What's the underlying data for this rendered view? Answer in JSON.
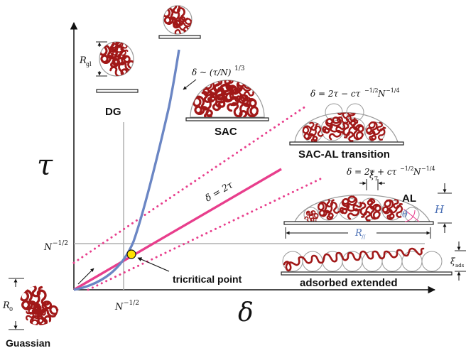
{
  "axes": {
    "y_label": "τ",
    "x_label": "δ",
    "y_tick": "N",
    "y_tick_exp": "−1/2",
    "x_tick": "N",
    "x_tick_exp": "−1/2"
  },
  "regimes": {
    "dg": "DG",
    "sac": "SAC",
    "sac_al": "SAC-AL transition",
    "al": "AL",
    "adsorbed": "adsorbed extended",
    "gaussian": "Guassian"
  },
  "formulas": {
    "scaling_lhs": "δ ~ (τ/N)",
    "scaling_exp": "1/3",
    "upper_boundary_lhs": "δ = 2τ − cτ",
    "upper_boundary_exp1": "−1/2",
    "upper_boundary_mid": "N",
    "upper_boundary_exp2": "−1/4",
    "middle_line": "δ = 2τ",
    "lower_boundary_lhs": "δ = 2τ + cτ",
    "lower_boundary_exp1": "−1/2",
    "lower_boundary_mid": "N",
    "lower_boundary_exp2": "−1/4"
  },
  "annotations": {
    "tricritical": "tricritical point",
    "r_gl": "R",
    "r_gl_sub": "gl",
    "r0": "R",
    "r0_sub": "0",
    "xi_t": "ξ",
    "xi_t_sub": "T",
    "h": "H",
    "theta": "θ",
    "r_par": "R",
    "r_par_sub": "//",
    "xi_ads": "ξ",
    "xi_ads_sub": "ads"
  },
  "colors": {
    "blue_curve": "#6b86c4",
    "magenta": "#e83e8c",
    "chain": "#a11818",
    "tricritical_point": "#ffe000",
    "guide_line": "#b0b0b0"
  }
}
